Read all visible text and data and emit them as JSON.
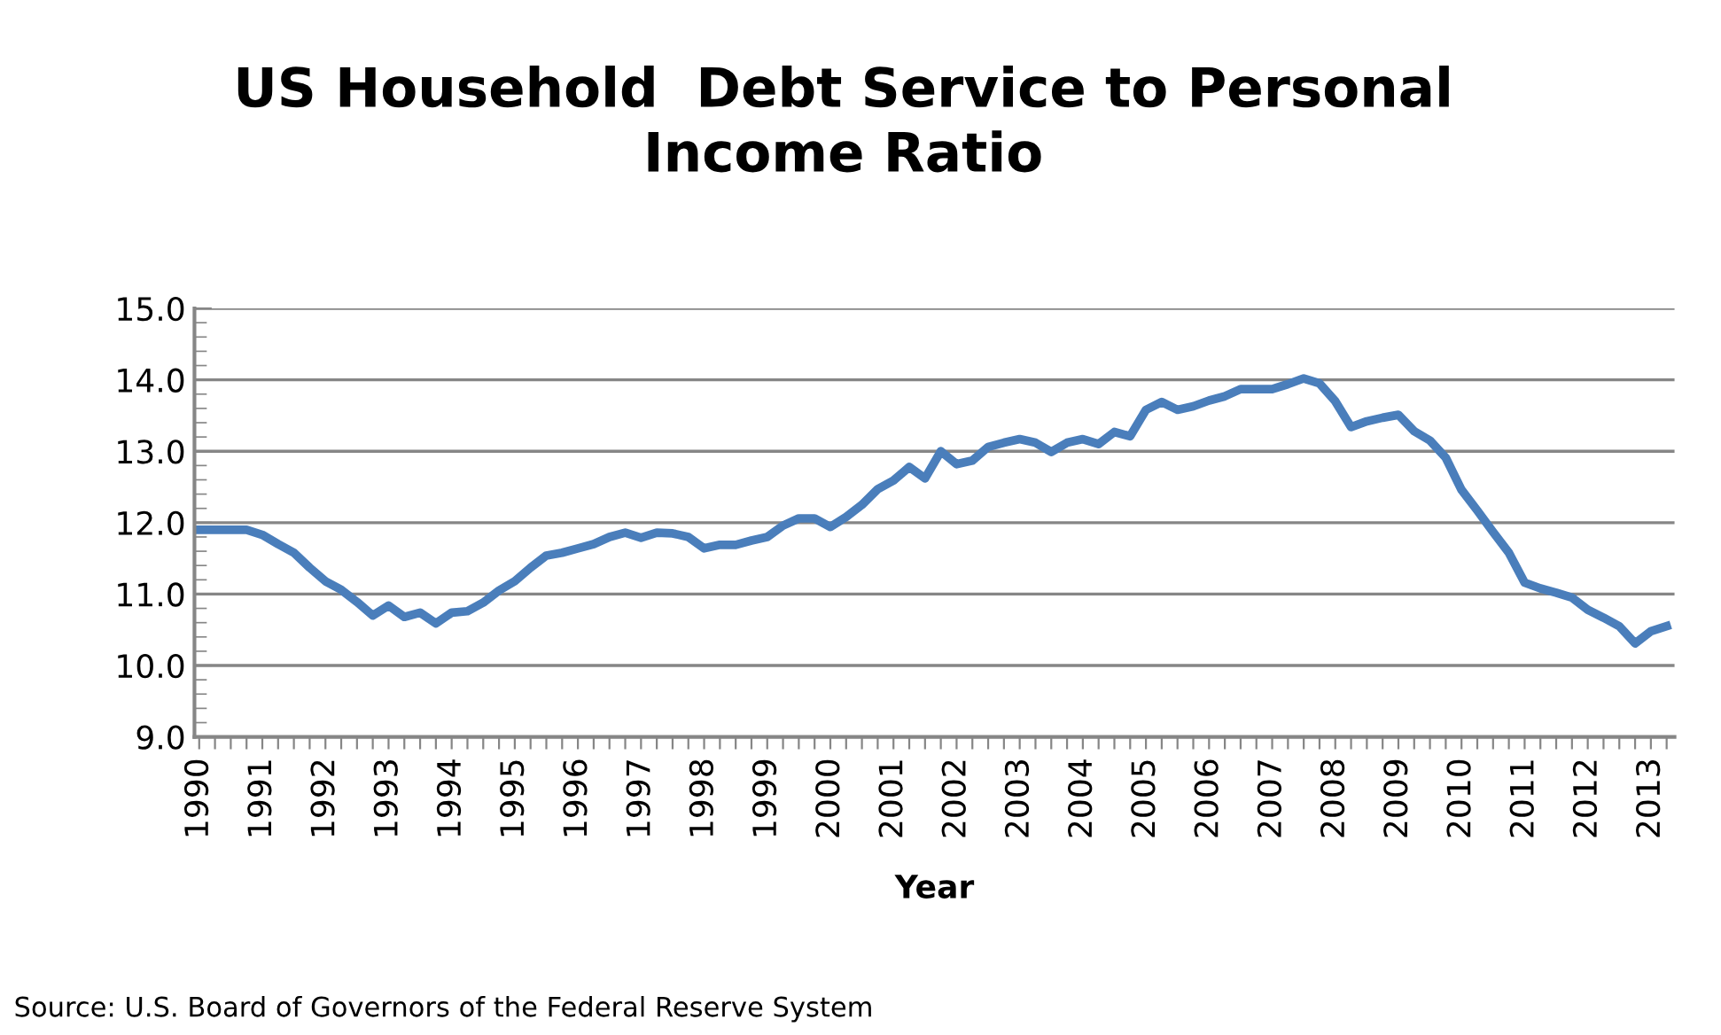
{
  "chart_data": {
    "type": "line",
    "title": "US Household  Debt Service to Personal\nIncome Ratio",
    "xlabel": "Year",
    "annotations": [
      "Source: U.S. Board of Governors of the Federal Reserve System"
    ],
    "categories": [
      "1990",
      null,
      null,
      null,
      "1991",
      null,
      null,
      null,
      "1992",
      null,
      null,
      null,
      "1993",
      null,
      null,
      null,
      "1994",
      null,
      null,
      null,
      "1995",
      null,
      null,
      null,
      "1996",
      null,
      null,
      null,
      "1997",
      null,
      null,
      null,
      "1998",
      null,
      null,
      null,
      "1999",
      null,
      null,
      null,
      "2000",
      null,
      null,
      null,
      "2001",
      null,
      null,
      null,
      "2002",
      null,
      null,
      null,
      "2003",
      null,
      null,
      null,
      "2004",
      null,
      null,
      null,
      "2005",
      null,
      null,
      null,
      "2006",
      null,
      null,
      null,
      "2007",
      null,
      null,
      null,
      "2008",
      null,
      null,
      null,
      "2009",
      null,
      null,
      null,
      "2010",
      null,
      null,
      null,
      "2011",
      null,
      null,
      null,
      "2012",
      null,
      null,
      null,
      "2013",
      null
    ],
    "series": [
      {
        "color": "#4a7ebb",
        "values": [
          11.9,
          11.9,
          11.9,
          11.9,
          11.83,
          11.7,
          11.58,
          11.37,
          11.18,
          11.06,
          10.89,
          10.7,
          10.84,
          10.68,
          10.74,
          10.59,
          10.74,
          10.76,
          10.88,
          11.05,
          11.18,
          11.37,
          11.54,
          11.58,
          11.64,
          11.7,
          11.8,
          11.86,
          11.79,
          11.86,
          11.85,
          11.8,
          11.64,
          11.69,
          11.69,
          11.75,
          11.8,
          11.96,
          12.06,
          12.06,
          11.94,
          12.08,
          12.25,
          12.47,
          12.59,
          12.78,
          12.62,
          13.0,
          12.82,
          12.87,
          13.06,
          13.12,
          13.17,
          13.12,
          12.99,
          13.12,
          13.17,
          13.1,
          13.27,
          13.21,
          13.58,
          13.69,
          13.58,
          13.63,
          13.71,
          13.77,
          13.87,
          13.87,
          13.87,
          13.94,
          14.02,
          13.95,
          13.7,
          13.34,
          13.42,
          13.47,
          13.51,
          13.28,
          13.15,
          12.91,
          12.46,
          12.17,
          11.87,
          11.58,
          11.16,
          11.08,
          11.02,
          10.95,
          10.78,
          10.67,
          10.55,
          10.31,
          10.48,
          10.55
        ]
      }
    ],
    "ylim": [
      9,
      15
    ],
    "yticks": [
      {
        "value": 9,
        "label": "9.0"
      },
      {
        "value": 10,
        "label": "10.0"
      },
      {
        "value": 11,
        "label": "11.0"
      },
      {
        "value": 12,
        "label": "12.0"
      },
      {
        "value": 13,
        "label": "13.0"
      },
      {
        "value": 14,
        "label": "14.0"
      },
      {
        "value": 15,
        "label": "15.0"
      }
    ],
    "grid": "y",
    "marker": "none",
    "line_style": "solid"
  }
}
